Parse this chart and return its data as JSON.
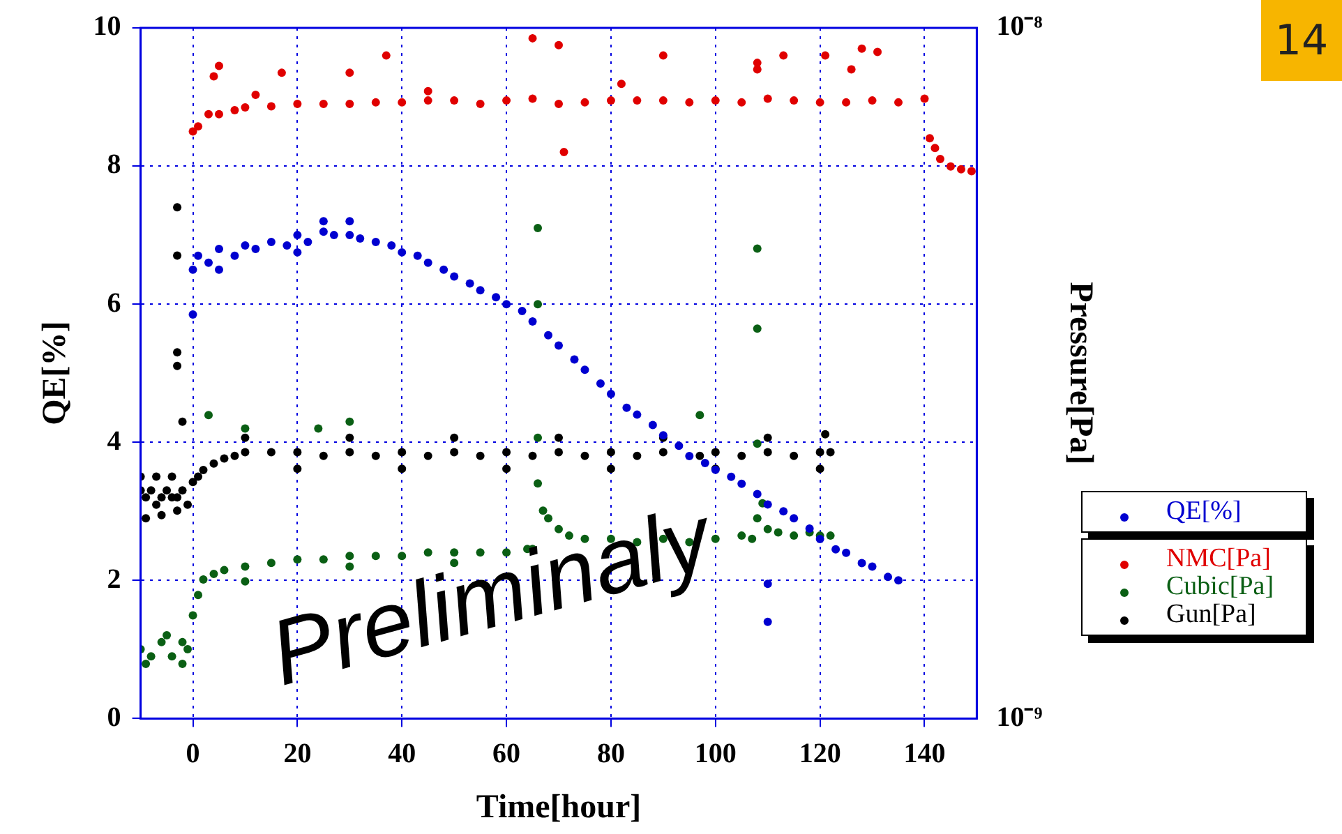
{
  "chart_data": {
    "type": "scatter",
    "xlabel": "Time[hour]",
    "ylabel": "QE[%]",
    "y2label": "Pressure[Pa]",
    "xlim": [
      -10,
      150
    ],
    "xticks": [
      0,
      20,
      40,
      60,
      80,
      100,
      120,
      140
    ],
    "ylim": [
      0,
      10
    ],
    "yticks": [
      0,
      2,
      4,
      6,
      8,
      10
    ],
    "y2lim": [
      1e-09,
      1e-08
    ],
    "y2ticks": [
      {
        "value": 1e-09,
        "label": "10⁻⁹"
      },
      {
        "value": 1e-08,
        "label": "10⁻⁸"
      }
    ],
    "log": "y2",
    "grid": true,
    "legend": "right",
    "marker": "circle",
    "annotations": [
      "Preliminaly",
      "14"
    ],
    "series": [
      {
        "name": "QE[%]",
        "color": "#0000d0",
        "axis": "y",
        "x": [
          0,
          0,
          1,
          3,
          5,
          8,
          10,
          12,
          15,
          18,
          20,
          22,
          25,
          27,
          30,
          32,
          35,
          38,
          40,
          43,
          45,
          48,
          50,
          53,
          55,
          58,
          60,
          63,
          65,
          68,
          70,
          73,
          75,
          78,
          80,
          83,
          85,
          88,
          90,
          93,
          95,
          98,
          100,
          103,
          105,
          108,
          110,
          113,
          115,
          118,
          120,
          123,
          125,
          128,
          130,
          133,
          135,
          110,
          110,
          5,
          20,
          30,
          25
        ],
        "values": [
          5.85,
          6.5,
          6.7,
          6.6,
          6.8,
          6.7,
          6.85,
          6.8,
          6.9,
          6.85,
          7.0,
          6.9,
          7.05,
          7.0,
          7.0,
          6.95,
          6.9,
          6.85,
          6.75,
          6.7,
          6.6,
          6.5,
          6.4,
          6.3,
          6.2,
          6.1,
          6.0,
          5.9,
          5.75,
          5.55,
          5.4,
          5.2,
          5.05,
          4.85,
          4.7,
          4.5,
          4.4,
          4.25,
          4.1,
          3.95,
          3.8,
          3.7,
          3.6,
          3.5,
          3.4,
          3.25,
          3.1,
          3.0,
          2.9,
          2.75,
          2.6,
          2.45,
          2.4,
          2.25,
          2.2,
          2.05,
          2.0,
          1.95,
          1.4,
          6.5,
          6.75,
          7.2,
          7.2
        ]
      },
      {
        "name": "NMC[Pa]",
        "color": "#e00000",
        "axis": "y2",
        "x": [
          0,
          1,
          3,
          5,
          8,
          10,
          15,
          20,
          25,
          30,
          35,
          40,
          45,
          50,
          55,
          60,
          65,
          70,
          75,
          80,
          85,
          90,
          95,
          100,
          105,
          110,
          115,
          120,
          125,
          130,
          135,
          140,
          141,
          142,
          143,
          145,
          147,
          149,
          4,
          5,
          17,
          30,
          37,
          65,
          70,
          71,
          90,
          108,
          113,
          121,
          126,
          128,
          131,
          12,
          45,
          82,
          108
        ],
        "values": [
          7.08e-09,
          7.2e-09,
          7.5e-09,
          7.5e-09,
          7.6e-09,
          7.67e-09,
          7.7e-09,
          7.76e-09,
          7.76e-09,
          7.76e-09,
          7.8e-09,
          7.8e-09,
          7.85e-09,
          7.85e-09,
          7.76e-09,
          7.85e-09,
          7.9e-09,
          7.76e-09,
          7.8e-09,
          7.85e-09,
          7.85e-09,
          7.85e-09,
          7.8e-09,
          7.85e-09,
          7.8e-09,
          7.9e-09,
          7.85e-09,
          7.8e-09,
          7.8e-09,
          7.85e-09,
          7.8e-09,
          7.9e-09,
          6.92e-09,
          6.7e-09,
          6.46e-09,
          6.3e-09,
          6.24e-09,
          6.2e-09,
          8.51e-09,
          8.81e-09,
          8.61e-09,
          8.61e-09,
          9.12e-09,
          9.66e-09,
          9.44e-09,
          6.61e-09,
          9.12e-09,
          8.71e-09,
          9.12e-09,
          9.12e-09,
          8.71e-09,
          9.33e-09,
          9.23e-09,
          8e-09,
          8.1e-09,
          8.3e-09,
          8.9e-09
        ]
      },
      {
        "name": "Cubic[Pa]",
        "color": "#0a5f14",
        "axis": "y2",
        "x": [
          -10,
          -8,
          -6,
          -4,
          -2,
          -1,
          -9,
          -5,
          -2,
          0,
          1,
          2,
          4,
          6,
          10,
          15,
          20,
          25,
          30,
          35,
          40,
          45,
          50,
          55,
          60,
          64,
          65,
          66,
          67,
          68,
          70,
          72,
          75,
          80,
          85,
          90,
          95,
          100,
          105,
          107,
          108,
          109,
          110,
          112,
          115,
          118,
          120,
          122,
          10,
          30,
          50,
          66,
          66,
          108,
          108,
          3,
          10,
          24,
          30,
          97,
          66,
          108
        ],
        "values": [
          1.26e-09,
          1.23e-09,
          1.29e-09,
          1.23e-09,
          1.29e-09,
          1.26e-09,
          1.2e-09,
          1.32e-09,
          1.2e-09,
          1.41e-09,
          1.51e-09,
          1.59e-09,
          1.62e-09,
          1.64e-09,
          1.66e-09,
          1.68e-09,
          1.7e-09,
          1.7e-09,
          1.72e-09,
          1.72e-09,
          1.72e-09,
          1.74e-09,
          1.74e-09,
          1.74e-09,
          1.74e-09,
          1.76e-09,
          1.76e-09,
          2.19e-09,
          2e-09,
          1.95e-09,
          1.88e-09,
          1.84e-09,
          1.82e-09,
          1.82e-09,
          1.8e-09,
          1.82e-09,
          1.8e-09,
          1.82e-09,
          1.84e-09,
          1.82e-09,
          1.95e-09,
          2.05e-09,
          1.88e-09,
          1.86e-09,
          1.84e-09,
          1.86e-09,
          1.84e-09,
          1.84e-09,
          1.58e-09,
          1.66e-09,
          1.68e-09,
          5.13e-09,
          3.98e-09,
          4.79e-09,
          3.67e-09,
          2.75e-09,
          2.63e-09,
          2.63e-09,
          2.69e-09,
          2.75e-09,
          2.55e-09,
          2.5e-09
        ]
      },
      {
        "name": "Gun[Pa]",
        "color": "#000000",
        "axis": "y2",
        "x": [
          -10,
          -9,
          -8,
          -7,
          -6,
          -5,
          -4,
          -3,
          -2,
          -1,
          0,
          -9,
          -6,
          -3,
          -10,
          -7,
          -4,
          1,
          2,
          4,
          6,
          8,
          10,
          15,
          20,
          25,
          30,
          35,
          40,
          45,
          50,
          55,
          60,
          65,
          70,
          75,
          80,
          85,
          90,
          97,
          100,
          105,
          110,
          115,
          120,
          122,
          10,
          30,
          50,
          70,
          90,
          110,
          121,
          20,
          40,
          60,
          80,
          100,
          120,
          -3,
          -3,
          -3,
          -3,
          -2
        ],
        "values": [
          2.14e-09,
          2.09e-09,
          2.14e-09,
          2.04e-09,
          2.09e-09,
          2.14e-09,
          2.09e-09,
          2.09e-09,
          2.14e-09,
          2.04e-09,
          2.2e-09,
          1.95e-09,
          1.97e-09,
          2e-09,
          2.24e-09,
          2.24e-09,
          2.24e-09,
          2.24e-09,
          2.29e-09,
          2.34e-09,
          2.38e-09,
          2.4e-09,
          2.43e-09,
          2.43e-09,
          2.43e-09,
          2.4e-09,
          2.43e-09,
          2.4e-09,
          2.43e-09,
          2.4e-09,
          2.43e-09,
          2.4e-09,
          2.43e-09,
          2.4e-09,
          2.43e-09,
          2.4e-09,
          2.43e-09,
          2.4e-09,
          2.43e-09,
          2.4e-09,
          2.43e-09,
          2.4e-09,
          2.43e-09,
          2.4e-09,
          2.43e-09,
          2.43e-09,
          2.55e-09,
          2.55e-09,
          2.55e-09,
          2.55e-09,
          2.55e-09,
          2.55e-09,
          2.58e-09,
          2.3e-09,
          2.3e-09,
          2.3e-09,
          2.3e-09,
          2.3e-09,
          2.3e-09,
          5.5e-09,
          4.68e-09,
          3.39e-09,
          3.24e-09,
          2.69e-09
        ]
      }
    ]
  }
}
